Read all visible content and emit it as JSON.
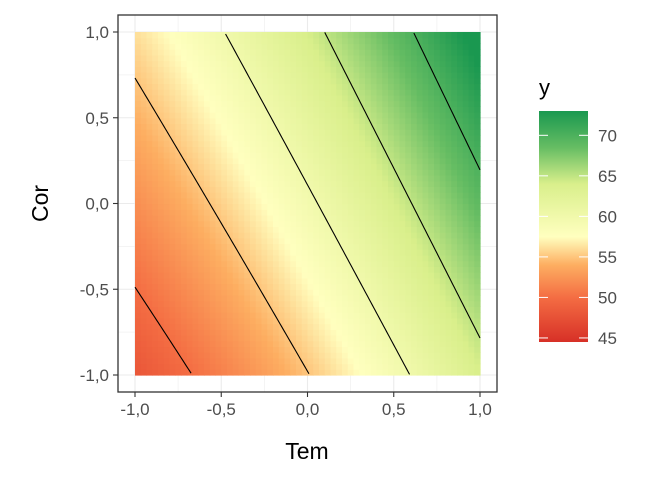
{
  "chart_data": {
    "type": "heatmap",
    "subtype": "contour",
    "title": "",
    "xlabel": "Tem",
    "ylabel": "Cor",
    "xlim": [
      -1.0,
      1.0
    ],
    "ylim": [
      -1.0,
      1.0
    ],
    "x_ticks": [
      -1.0,
      -0.5,
      0.0,
      0.5,
      1.0
    ],
    "y_ticks": [
      -1.0,
      -0.5,
      0.0,
      0.5,
      1.0
    ],
    "x_tick_labels": [
      "-1,0",
      "-0,5",
      "0,0",
      "0,5",
      "1,0"
    ],
    "y_tick_labels": [
      "-1,0",
      "-0,5",
      "0,0",
      "0,5",
      "1,0"
    ],
    "grid": true,
    "surface": {
      "intercept": 59.5,
      "tem": 8.5,
      "cor": 4.6,
      "tem_sq": 1.0,
      "cor_sq": 0.0,
      "tem_cor": 0.5
    },
    "contour_levels": [
      45,
      50,
      55,
      60,
      65,
      70
    ],
    "color_range": [
      44.5,
      73.0
    ],
    "color_stops": [
      {
        "value": 44.5,
        "color": "#d73027"
      },
      {
        "value": 50.0,
        "color": "#f46d43"
      },
      {
        "value": 54.0,
        "color": "#fdae61"
      },
      {
        "value": 57.5,
        "color": "#ffffbf"
      },
      {
        "value": 64.0,
        "color": "#d9ef8b"
      },
      {
        "value": 68.5,
        "color": "#66bd63"
      },
      {
        "value": 73.0,
        "color": "#1a9850"
      }
    ],
    "legend": {
      "title": "y",
      "position": "right",
      "ticks": [
        45,
        50,
        55,
        60,
        65,
        70
      ],
      "tick_labels": [
        "45",
        "50",
        "55",
        "60",
        "65",
        "70"
      ]
    }
  }
}
